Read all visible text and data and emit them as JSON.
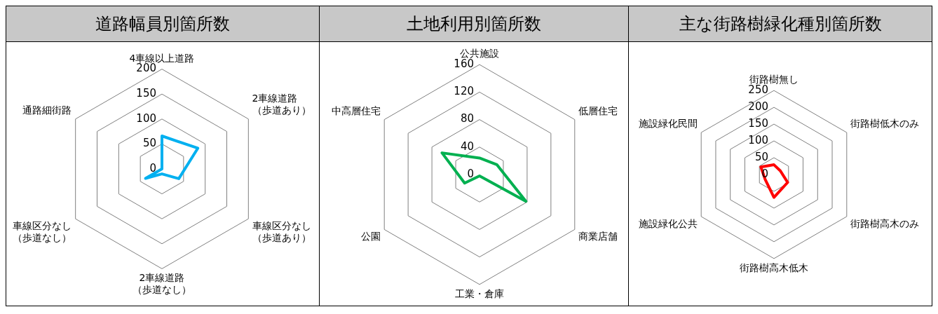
{
  "chart_data": [
    {
      "type": "radar",
      "title": "道路幅員別箇所数",
      "categories": [
        "4車線以上道路",
        "2車線道路（歩道あり）",
        "車線区分なし（歩道あり）",
        "2車線道路（歩道なし）",
        "車線区分なし（歩道なし）",
        "通路細街路"
      ],
      "series": [
        {
          "color": "#00b0f0",
          "values": [
            66,
            83,
            39,
            10,
            38,
            0
          ]
        }
      ],
      "ylim": [
        0,
        200
      ],
      "yticks": [
        0,
        50,
        100,
        150,
        200
      ],
      "grid": true,
      "legend": false,
      "marker": "none"
    },
    {
      "type": "radar",
      "title": "土地利用別箇所数",
      "categories": [
        "公共施設",
        "低層住宅",
        "商業店舗",
        "工業・倉庫",
        "公園",
        "中高層住宅"
      ],
      "series": [
        {
          "color": "#00b050",
          "values": [
            24,
            29,
            78,
            2,
            25,
            63
          ]
        }
      ],
      "ylim": [
        0,
        160
      ],
      "yticks": [
        0,
        40,
        80,
        120,
        160
      ],
      "grid": true,
      "legend": false,
      "marker": "none"
    },
    {
      "type": "radar",
      "title": "主な街路樹緑化種別箇所数",
      "categories": [
        "街路樹無し",
        "街路樹低木のみ",
        "街路樹高木のみ",
        "街路樹高木低木",
        "施設緑化公共",
        "施設緑化民間"
      ],
      "series": [
        {
          "color": "#ff0000",
          "values": [
            29,
            22,
            47,
            68,
            30,
            45
          ]
        }
      ],
      "ylim": [
        0,
        250
      ],
      "yticks": [
        0,
        50,
        100,
        150,
        200,
        250
      ],
      "grid": true,
      "legend": false,
      "marker": "none"
    }
  ]
}
